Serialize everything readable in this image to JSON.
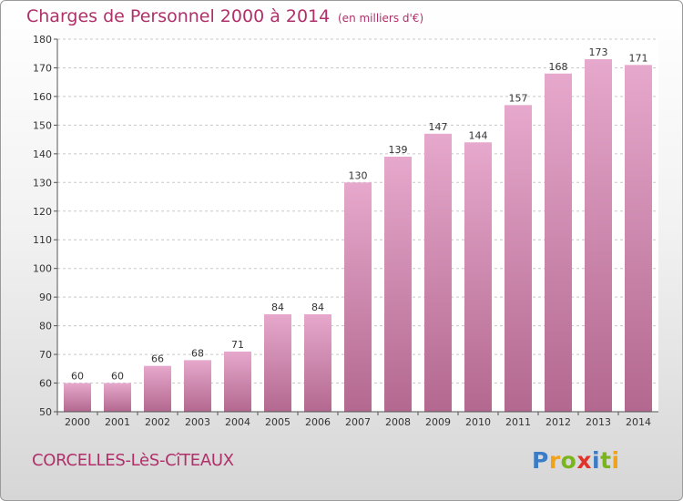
{
  "chart_data": {
    "type": "bar",
    "title": "Charges de Personnel 2000 à 2014",
    "subtitle": "(en milliers d'€)",
    "categories": [
      "2000",
      "2001",
      "2002",
      "2003",
      "2004",
      "2005",
      "2006",
      "2007",
      "2008",
      "2009",
      "2010",
      "2011",
      "2012",
      "2013",
      "2014"
    ],
    "values": [
      60,
      60,
      66,
      68,
      71,
      84,
      84,
      130,
      139,
      147,
      144,
      157,
      168,
      173,
      171
    ],
    "ylim": [
      50,
      180
    ],
    "yticks": [
      50,
      60,
      70,
      80,
      90,
      100,
      110,
      120,
      130,
      140,
      150,
      160,
      170,
      180
    ],
    "grid": true,
    "bar_color_top": "#e6a8cc",
    "bar_color_bottom": "#b3688f"
  },
  "footer": {
    "commune": "CORCELLES-LèS-CîTEAUX",
    "logo_letters": [
      "P",
      "r",
      "o",
      "x",
      "i",
      "t",
      "i"
    ],
    "logo_colors": [
      "#3a7cc7",
      "#f0a21a",
      "#7ab51d",
      "#e0342a",
      "#3a7cc7",
      "#7ab51d",
      "#f0a21a"
    ]
  }
}
